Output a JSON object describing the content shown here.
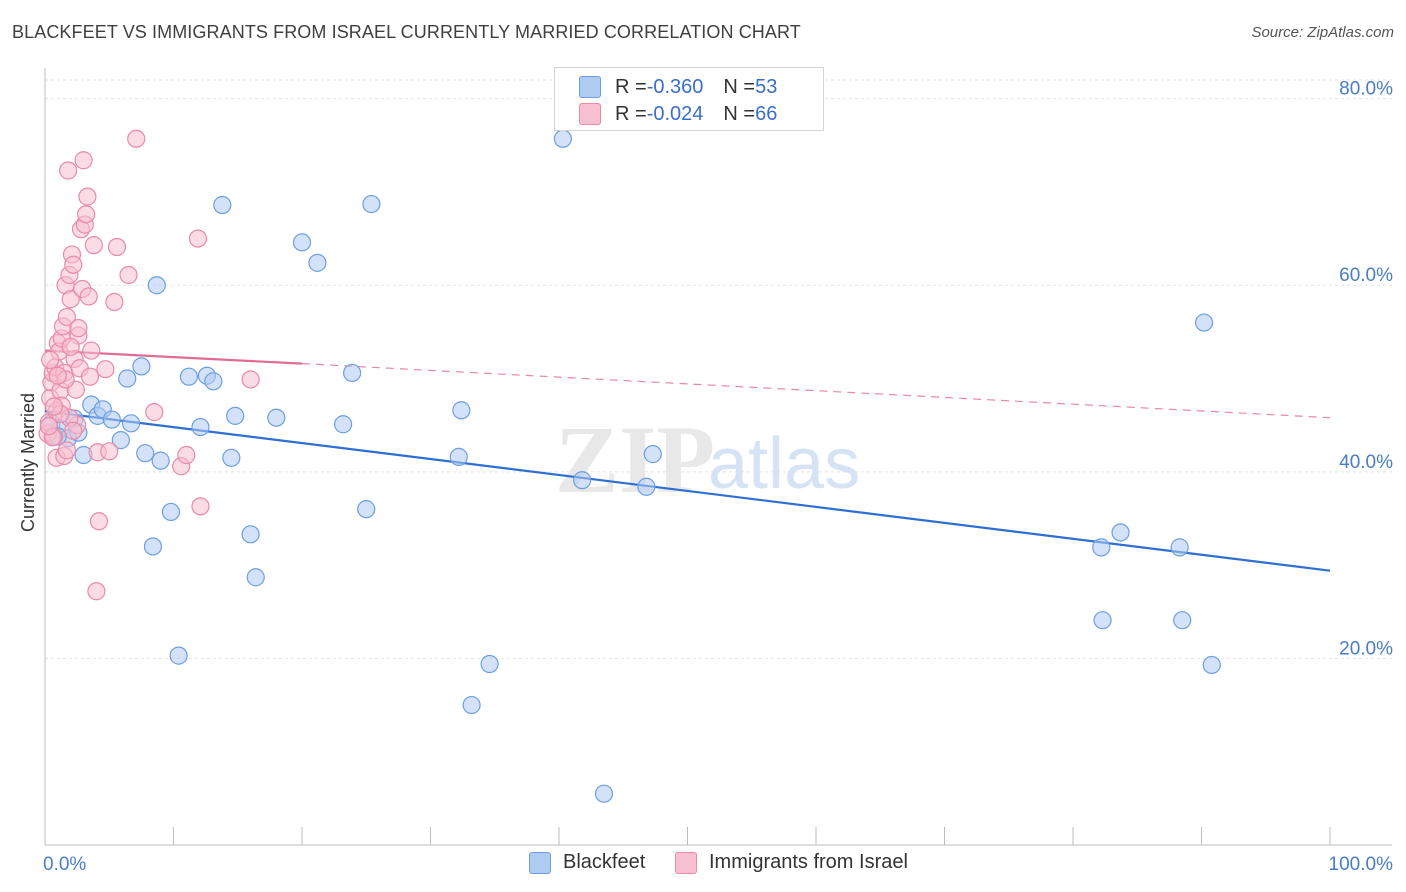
{
  "header": {
    "title": "BLACKFEET VS IMMIGRANTS FROM ISRAEL CURRENTLY MARRIED CORRELATION CHART",
    "source": "Source: ZipAtlas.com"
  },
  "legend": {
    "rows": [
      {
        "r_label": "R = ",
        "r_value": "-0.360",
        "n_label": "N = ",
        "n_value": "53",
        "color": "#aecbf2",
        "border": "#6d9fe0"
      },
      {
        "r_label": "R = ",
        "r_value": "-0.024",
        "n_label": "N = ",
        "n_value": "66",
        "color": "#f7c0d0",
        "border": "#e98aa8"
      }
    ]
  },
  "bottom_legend": {
    "items": [
      {
        "label": "Blackfeet",
        "color": "#aecbf2",
        "border": "#6d9fe0"
      },
      {
        "label": "Immigrants from Israel",
        "color": "#f7c0d0",
        "border": "#e98aa8"
      }
    ]
  },
  "watermark": {
    "zip": "ZIP",
    "atlas": "atlas"
  },
  "chart_data": {
    "type": "scatter",
    "title": "BLACKFEET VS IMMIGRANTS FROM ISRAEL CURRENTLY MARRIED CORRELATION CHART",
    "xlabel": "",
    "ylabel": "Currently Married",
    "xlim": [
      0,
      100
    ],
    "ylim": [
      0,
      82
    ],
    "x_tick_labels": [
      "0.0%",
      "100.0%"
    ],
    "y_ticks": [
      20,
      40,
      60,
      80
    ],
    "y_tick_labels": [
      "20.0%",
      "40.0%",
      "60.0%",
      "80.0%"
    ],
    "grid": true,
    "legend_position": "top-center",
    "series": [
      {
        "name": "Blackfeet",
        "color": "#6d9fe0",
        "fill": "#aecbf2",
        "trend": {
          "x": [
            0,
            100
          ],
          "y": [
            46.5,
            29.4
          ],
          "style": "solid",
          "color": "#2e6fd1"
        },
        "points": [
          [
            0.5,
            45.2
          ],
          [
            1.2,
            44.6
          ],
          [
            1.8,
            43.6
          ],
          [
            2.3,
            45.7
          ],
          [
            3.0,
            41.8
          ],
          [
            3.6,
            47.2
          ],
          [
            4.1,
            46.0
          ],
          [
            4.5,
            46.7
          ],
          [
            5.2,
            45.6
          ],
          [
            5.9,
            43.4
          ],
          [
            6.4,
            50.0
          ],
          [
            6.7,
            45.2
          ],
          [
            7.5,
            51.3
          ],
          [
            7.8,
            42.0
          ],
          [
            8.4,
            32.0
          ],
          [
            8.7,
            60.0
          ],
          [
            9.0,
            41.2
          ],
          [
            9.8,
            35.7
          ],
          [
            10.4,
            20.3
          ],
          [
            11.2,
            50.2
          ],
          [
            12.1,
            44.8
          ],
          [
            12.6,
            50.3
          ],
          [
            13.1,
            49.7
          ],
          [
            13.8,
            68.6
          ],
          [
            14.5,
            41.5
          ],
          [
            14.8,
            46.0
          ],
          [
            16.0,
            33.3
          ],
          [
            16.4,
            28.7
          ],
          [
            18.0,
            45.8
          ],
          [
            20.0,
            64.6
          ],
          [
            21.2,
            62.4
          ],
          [
            23.2,
            45.1
          ],
          [
            23.9,
            50.6
          ],
          [
            25.0,
            36.0
          ],
          [
            25.4,
            68.7
          ],
          [
            40.3,
            75.7
          ],
          [
            32.2,
            41.6
          ],
          [
            32.4,
            46.6
          ],
          [
            34.6,
            19.4
          ],
          [
            33.2,
            15.0
          ],
          [
            41.8,
            39.1
          ],
          [
            43.5,
            5.5
          ],
          [
            46.8,
            38.4
          ],
          [
            47.3,
            41.9
          ],
          [
            82.2,
            31.9
          ],
          [
            83.7,
            33.5
          ],
          [
            82.3,
            24.1
          ],
          [
            88.3,
            31.9
          ],
          [
            88.5,
            24.1
          ],
          [
            90.8,
            19.3
          ],
          [
            90.2,
            56.0
          ],
          [
            1.0,
            43.8
          ],
          [
            2.6,
            44.2
          ]
        ]
      },
      {
        "name": "Immigrants from Israel",
        "color": "#e98aa8",
        "fill": "#f7c0d0",
        "trend": {
          "x": [
            0,
            20
          ],
          "y": [
            53.0,
            51.6
          ],
          "style": "solid",
          "color": "#e06b95",
          "dashed_x": [
            20,
            100
          ],
          "dashed_y": [
            51.6,
            45.8
          ]
        },
        "points": [
          [
            0.2,
            44.1
          ],
          [
            0.3,
            45.3
          ],
          [
            0.4,
            47.9
          ],
          [
            0.5,
            49.6
          ],
          [
            0.6,
            50.6
          ],
          [
            0.7,
            43.8
          ],
          [
            0.8,
            51.2
          ],
          [
            0.9,
            46.5
          ],
          [
            1.0,
            53.8
          ],
          [
            1.1,
            52.9
          ],
          [
            1.2,
            48.7
          ],
          [
            1.3,
            54.3
          ],
          [
            1.4,
            55.6
          ],
          [
            1.5,
            50.6
          ],
          [
            1.6,
            60.0
          ],
          [
            1.7,
            56.6
          ],
          [
            1.8,
            72.3
          ],
          [
            1.9,
            61.1
          ],
          [
            2.0,
            58.5
          ],
          [
            2.1,
            63.3
          ],
          [
            2.2,
            62.2
          ],
          [
            2.3,
            52.1
          ],
          [
            2.4,
            48.8
          ],
          [
            2.5,
            45.0
          ],
          [
            2.6,
            54.6
          ],
          [
            2.7,
            51.1
          ],
          [
            2.8,
            66.0
          ],
          [
            2.9,
            59.6
          ],
          [
            3.0,
            73.4
          ],
          [
            3.1,
            66.5
          ],
          [
            3.2,
            67.6
          ],
          [
            3.3,
            69.5
          ],
          [
            3.4,
            58.8
          ],
          [
            3.6,
            53.0
          ],
          [
            3.8,
            64.3
          ],
          [
            4.1,
            42.1
          ],
          [
            4.2,
            34.7
          ],
          [
            4.0,
            27.2
          ],
          [
            4.7,
            51.0
          ],
          [
            5.0,
            42.2
          ],
          [
            5.4,
            58.2
          ],
          [
            5.6,
            64.1
          ],
          [
            6.5,
            61.1
          ],
          [
            7.1,
            75.7
          ],
          [
            8.5,
            46.4
          ],
          [
            10.6,
            40.6
          ],
          [
            11.0,
            41.8
          ],
          [
            11.9,
            65.0
          ],
          [
            12.1,
            36.3
          ],
          [
            16.0,
            49.9
          ],
          [
            0.9,
            41.5
          ],
          [
            1.3,
            47.1
          ],
          [
            1.6,
            49.9
          ],
          [
            0.6,
            43.7
          ],
          [
            1.9,
            45.8
          ],
          [
            2.2,
            44.4
          ],
          [
            0.4,
            52.0
          ],
          [
            1.0,
            50.3
          ],
          [
            1.5,
            41.7
          ],
          [
            2.6,
            55.4
          ],
          [
            1.2,
            46.2
          ],
          [
            0.7,
            47.0
          ],
          [
            2.0,
            53.4
          ],
          [
            3.5,
            50.2
          ],
          [
            0.3,
            44.9
          ],
          [
            1.7,
            42.3
          ]
        ]
      }
    ]
  }
}
